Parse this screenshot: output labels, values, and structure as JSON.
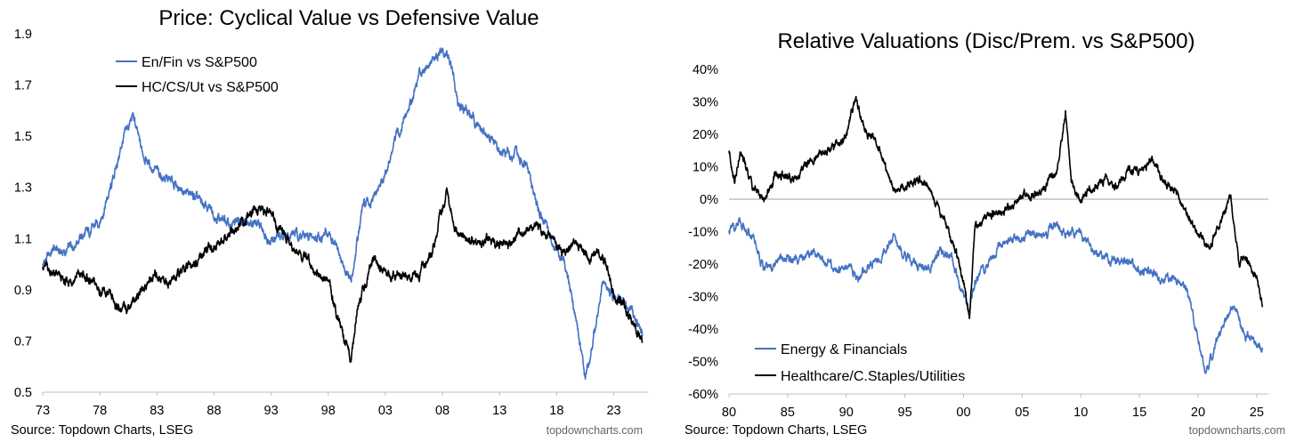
{
  "chart_data": [
    {
      "type": "line",
      "title": "Price: Cyclical Value vs Defensive Value",
      "xlabel": "",
      "ylabel": "",
      "x_ticks": [
        "73",
        "78",
        "83",
        "88",
        "93",
        "98",
        "03",
        "08",
        "13",
        "18",
        "23"
      ],
      "y_ticks": [
        "1.9",
        "1.7",
        "1.5",
        "1.3",
        "1.1",
        "0.9",
        "0.7",
        "0.5"
      ],
      "xlim": [
        1973,
        2026
      ],
      "ylim": [
        0.5,
        1.9
      ],
      "grid": false,
      "legend_position": "top-left",
      "source": "Source: Topdown Charts, LSEG",
      "watermark": "topdowncharts.com",
      "series": [
        {
          "name": "En/Fin vs S&P500",
          "color": "#4472C4",
          "points": [
            [
              1973,
              1.0
            ],
            [
              1974,
              1.06
            ],
            [
              1975,
              1.04
            ],
            [
              1976,
              1.1
            ],
            [
              1977,
              1.12
            ],
            [
              1978,
              1.17
            ],
            [
              1979,
              1.3
            ],
            [
              1980,
              1.48
            ],
            [
              1980.9,
              1.58
            ],
            [
              1981.6,
              1.45
            ],
            [
              1982.5,
              1.38
            ],
            [
              1983.5,
              1.34
            ],
            [
              1985,
              1.3
            ],
            [
              1986.5,
              1.25
            ],
            [
              1988,
              1.2
            ],
            [
              1989.5,
              1.15
            ],
            [
              1991,
              1.18
            ],
            [
              1993,
              1.1
            ],
            [
              1995,
              1.12
            ],
            [
              1996.5,
              1.1
            ],
            [
              1998,
              1.12
            ],
            [
              1999,
              1.03
            ],
            [
              2000,
              0.92
            ],
            [
              2001,
              1.22
            ],
            [
              2002,
              1.25
            ],
            [
              2003,
              1.35
            ],
            [
              2004,
              1.5
            ],
            [
              2005,
              1.6
            ],
            [
              2006,
              1.75
            ],
            [
              2007,
              1.8
            ],
            [
              2008.5,
              1.82
            ],
            [
              2009.5,
              1.62
            ],
            [
              2010.5,
              1.58
            ],
            [
              2012,
              1.5
            ],
            [
              2013,
              1.44
            ],
            [
              2014.5,
              1.42
            ],
            [
              2015.5,
              1.36
            ],
            [
              2016.5,
              1.2
            ],
            [
              2017.5,
              1.1
            ],
            [
              2018.5,
              1.02
            ],
            [
              2019,
              0.95
            ],
            [
              2020,
              0.7
            ],
            [
              2020.5,
              0.55
            ],
            [
              2021.2,
              0.7
            ],
            [
              2022,
              0.92
            ],
            [
              2023,
              0.88
            ],
            [
              2024,
              0.85
            ],
            [
              2025,
              0.78
            ],
            [
              2025.5,
              0.72
            ]
          ]
        },
        {
          "name": "HC/CS/Ut vs S&P500",
          "color": "#000000",
          "points": [
            [
              1973,
              1.0
            ],
            [
              1974,
              0.96
            ],
            [
              1975,
              0.92
            ],
            [
              1976,
              0.96
            ],
            [
              1977,
              0.94
            ],
            [
              1978,
              0.9
            ],
            [
              1979,
              0.86
            ],
            [
              1980,
              0.82
            ],
            [
              1981,
              0.86
            ],
            [
              1982,
              0.92
            ],
            [
              1983,
              0.96
            ],
            [
              1984,
              0.93
            ],
            [
              1985,
              0.96
            ],
            [
              1986,
              1.0
            ],
            [
              1987,
              1.04
            ],
            [
              1988,
              1.07
            ],
            [
              1989,
              1.1
            ],
            [
              1990,
              1.14
            ],
            [
              1991,
              1.18
            ],
            [
              1992,
              1.22
            ],
            [
              1993,
              1.19
            ],
            [
              1994,
              1.12
            ],
            [
              1995,
              1.07
            ],
            [
              1996,
              1.02
            ],
            [
              1997,
              0.98
            ],
            [
              1998,
              0.92
            ],
            [
              1999,
              0.78
            ],
            [
              2000,
              0.62
            ],
            [
              2000.6,
              0.85
            ],
            [
              2001,
              0.9
            ],
            [
              2002,
              1.02
            ],
            [
              2003,
              0.95
            ],
            [
              2004,
              0.96
            ],
            [
              2005,
              0.95
            ],
            [
              2006,
              0.97
            ],
            [
              2007,
              1.02
            ],
            [
              2008,
              1.22
            ],
            [
              2008.4,
              1.28
            ],
            [
              2009,
              1.15
            ],
            [
              2010,
              1.1
            ],
            [
              2011,
              1.08
            ],
            [
              2012,
              1.1
            ],
            [
              2013,
              1.08
            ],
            [
              2014,
              1.08
            ],
            [
              2015,
              1.12
            ],
            [
              2016,
              1.14
            ],
            [
              2017,
              1.12
            ],
            [
              2018,
              1.07
            ],
            [
              2019,
              1.06
            ],
            [
              2020,
              1.08
            ],
            [
              2021,
              1.02
            ],
            [
              2022,
              1.04
            ],
            [
              2023,
              0.88
            ],
            [
              2024,
              0.83
            ],
            [
              2025,
              0.74
            ],
            [
              2025.5,
              0.7
            ]
          ]
        }
      ]
    },
    {
      "type": "line",
      "title": "Relative Valuations (Disc/Prem. vs S&P500)",
      "xlabel": "",
      "ylabel": "",
      "x_ticks": [
        "80",
        "85",
        "90",
        "95",
        "00",
        "05",
        "10",
        "15",
        "20",
        "25"
      ],
      "y_ticks": [
        "40%",
        "30%",
        "20%",
        "10%",
        "0%",
        "-10%",
        "-20%",
        "-30%",
        "-40%",
        "-50%",
        "-60%"
      ],
      "xlim": [
        1980,
        2026
      ],
      "ylim": [
        -60,
        40
      ],
      "grid": false,
      "zero_line": true,
      "legend_position": "bottom-left",
      "source": "Source: Topdown Charts, LSEG",
      "watermark": "topdowncharts.com",
      "series": [
        {
          "name": "Energy & Financials",
          "color": "#4472C4",
          "points": [
            [
              1980,
              -10
            ],
            [
              1981,
              -8
            ],
            [
              1982,
              -12
            ],
            [
              1983,
              -22
            ],
            [
              1984,
              -20
            ],
            [
              1985,
              -18
            ],
            [
              1986,
              -20
            ],
            [
              1987,
              -16
            ],
            [
              1988,
              -18
            ],
            [
              1989,
              -22
            ],
            [
              1990,
              -20
            ],
            [
              1991,
              -24
            ],
            [
              1992,
              -20
            ],
            [
              1993,
              -18
            ],
            [
              1994,
              -12
            ],
            [
              1995,
              -18
            ],
            [
              1996,
              -20
            ],
            [
              1997,
              -22
            ],
            [
              1998,
              -16
            ],
            [
              1999,
              -18
            ],
            [
              2000,
              -30
            ],
            [
              2000.5,
              -36
            ],
            [
              2001,
              -25
            ],
            [
              2002,
              -20
            ],
            [
              2003,
              -15
            ],
            [
              2004,
              -12
            ],
            [
              2005,
              -12
            ],
            [
              2006,
              -10
            ],
            [
              2007,
              -11
            ],
            [
              2008,
              -7
            ],
            [
              2009,
              -11
            ],
            [
              2010,
              -10
            ],
            [
              2011,
              -16
            ],
            [
              2012,
              -17
            ],
            [
              2013,
              -19
            ],
            [
              2014,
              -19
            ],
            [
              2015,
              -22
            ],
            [
              2016,
              -22
            ],
            [
              2017,
              -25
            ],
            [
              2018,
              -24
            ],
            [
              2019,
              -28
            ],
            [
              2020,
              -42
            ],
            [
              2020.6,
              -54
            ],
            [
              2021,
              -50
            ],
            [
              2022,
              -40
            ],
            [
              2023,
              -33
            ],
            [
              2024,
              -42
            ],
            [
              2025,
              -44
            ],
            [
              2025.5,
              -46
            ]
          ]
        },
        {
          "name": "Healthcare/C.Staples/Utilities",
          "color": "#000000",
          "points": [
            [
              1980,
              15
            ],
            [
              1980.5,
              6
            ],
            [
              1981,
              14
            ],
            [
              1982,
              4
            ],
            [
              1983,
              0
            ],
            [
              1984,
              8
            ],
            [
              1985,
              6
            ],
            [
              1986,
              8
            ],
            [
              1987,
              12
            ],
            [
              1988,
              14
            ],
            [
              1989,
              16
            ],
            [
              1990,
              20
            ],
            [
              1990.8,
              31
            ],
            [
              1991.5,
              22
            ],
            [
              1992,
              20
            ],
            [
              1993,
              14
            ],
            [
              1994,
              2
            ],
            [
              1995,
              4
            ],
            [
              1996,
              6
            ],
            [
              1997,
              4
            ],
            [
              1998,
              -4
            ],
            [
              1999,
              -12
            ],
            [
              2000,
              -26
            ],
            [
              2000.5,
              -36
            ],
            [
              2001,
              -8
            ],
            [
              2002,
              -5
            ],
            [
              2003,
              -4
            ],
            [
              2004,
              -3
            ],
            [
              2005,
              2
            ],
            [
              2006,
              1
            ],
            [
              2007,
              4
            ],
            [
              2008,
              10
            ],
            [
              2008.7,
              27
            ],
            [
              2009.2,
              5
            ],
            [
              2010,
              0
            ],
            [
              2011,
              4
            ],
            [
              2012,
              6
            ],
            [
              2013,
              4
            ],
            [
              2014,
              8
            ],
            [
              2015,
              9
            ],
            [
              2016,
              12
            ],
            [
              2017,
              6
            ],
            [
              2018,
              2
            ],
            [
              2019,
              -4
            ],
            [
              2020,
              -12
            ],
            [
              2021,
              -15
            ],
            [
              2022,
              -6
            ],
            [
              2022.8,
              0
            ],
            [
              2023.5,
              -20
            ],
            [
              2024,
              -18
            ],
            [
              2025,
              -24
            ],
            [
              2025.5,
              -33
            ]
          ]
        }
      ]
    }
  ]
}
